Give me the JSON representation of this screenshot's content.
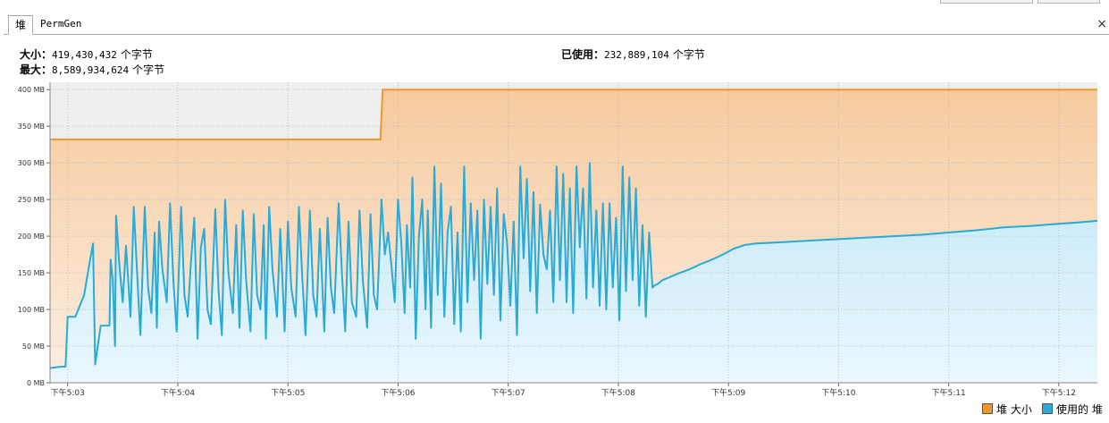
{
  "tabs": [
    {
      "label": "堆",
      "active": true
    },
    {
      "label": "PermGen",
      "active": false
    }
  ],
  "close_glyph": "×",
  "stats": {
    "size_label": "大小：",
    "size_value": "419,430,432",
    "max_label": "最大：",
    "max_value": "8,589,934,624",
    "used_label": "已使用：",
    "used_value": "232,889,104",
    "unit": "个字节"
  },
  "colors": {
    "heap_size": "#f0962d",
    "used_heap": "#2aaad6",
    "size_fill": "#f6ca9e",
    "used_fill": "#c3e8f8",
    "grid": "#c0c0c0",
    "plot_bg": "#efefef"
  },
  "chart_data": {
    "type": "area",
    "x_unit": "minutes after 17:03",
    "ylim": [
      0,
      410
    ],
    "y_unit": "MB",
    "y_ticks": [
      0,
      50,
      100,
      150,
      200,
      250,
      300,
      350,
      400
    ],
    "y_tick_labels": [
      "0 MB",
      "50 MB",
      "100 MB",
      "150 MB",
      "200 MB",
      "250 MB",
      "300 MB",
      "350 MB",
      "400 MB"
    ],
    "x_ticks": [
      0,
      1,
      2,
      3,
      4,
      5,
      6,
      7,
      8,
      9
    ],
    "x_tick_labels": [
      "下午5:03",
      "下午5:04",
      "下午5:05",
      "下午5:06",
      "下午5:07",
      "下午5:08",
      "下午5:09",
      "下午5:10",
      "下午5:11",
      "下午5:12"
    ],
    "xlim": [
      -0.16,
      9.35
    ],
    "grid": true,
    "legend_position": "bottom-right",
    "series": [
      {
        "name": "堆 大小",
        "color": "#f0962d",
        "points": [
          [
            -0.16,
            332
          ],
          [
            2.84,
            332
          ],
          [
            2.86,
            400
          ],
          [
            9.35,
            400
          ]
        ]
      },
      {
        "name": "使用的 堆",
        "color": "#2aaad6",
        "points": [
          [
            -0.16,
            20
          ],
          [
            -0.06,
            22
          ],
          [
            -0.02,
            22
          ],
          [
            0.0,
            90
          ],
          [
            0.07,
            90
          ],
          [
            0.15,
            120
          ],
          [
            0.2,
            165
          ],
          [
            0.23,
            190
          ],
          [
            0.25,
            25
          ],
          [
            0.3,
            78
          ],
          [
            0.35,
            78
          ],
          [
            0.38,
            78
          ],
          [
            0.39,
            168
          ],
          [
            0.41,
            140
          ],
          [
            0.43,
            50
          ],
          [
            0.44,
            228
          ],
          [
            0.47,
            160
          ],
          [
            0.5,
            110
          ],
          [
            0.53,
            187
          ],
          [
            0.57,
            90
          ],
          [
            0.6,
            240
          ],
          [
            0.63,
            150
          ],
          [
            0.66,
            65
          ],
          [
            0.7,
            240
          ],
          [
            0.73,
            130
          ],
          [
            0.76,
            95
          ],
          [
            0.79,
            205
          ],
          [
            0.81,
            75
          ],
          [
            0.83,
            220
          ],
          [
            0.86,
            155
          ],
          [
            0.9,
            110
          ],
          [
            0.93,
            245
          ],
          [
            0.96,
            140
          ],
          [
            0.99,
            70
          ],
          [
            1.03,
            240
          ],
          [
            1.06,
            120
          ],
          [
            1.09,
            90
          ],
          [
            1.12,
            165
          ],
          [
            1.15,
            225
          ],
          [
            1.18,
            60
          ],
          [
            1.21,
            185
          ],
          [
            1.24,
            210
          ],
          [
            1.27,
            100
          ],
          [
            1.3,
            80
          ],
          [
            1.34,
            237
          ],
          [
            1.37,
            125
          ],
          [
            1.4,
            65
          ],
          [
            1.43,
            250
          ],
          [
            1.46,
            150
          ],
          [
            1.5,
            95
          ],
          [
            1.53,
            215
          ],
          [
            1.56,
            75
          ],
          [
            1.59,
            235
          ],
          [
            1.62,
            140
          ],
          [
            1.66,
            70
          ],
          [
            1.69,
            230
          ],
          [
            1.72,
            120
          ],
          [
            1.75,
            100
          ],
          [
            1.78,
            215
          ],
          [
            1.8,
            60
          ],
          [
            1.83,
            240
          ],
          [
            1.86,
            155
          ],
          [
            1.9,
            90
          ],
          [
            1.93,
            210
          ],
          [
            1.97,
            70
          ],
          [
            2.0,
            220
          ],
          [
            2.03,
            130
          ],
          [
            2.07,
            90
          ],
          [
            2.1,
            240
          ],
          [
            2.13,
            145
          ],
          [
            2.16,
            65
          ],
          [
            2.2,
            235
          ],
          [
            2.23,
            120
          ],
          [
            2.26,
            90
          ],
          [
            2.29,
            210
          ],
          [
            2.33,
            70
          ],
          [
            2.36,
            225
          ],
          [
            2.39,
            130
          ],
          [
            2.42,
            95
          ],
          [
            2.46,
            245
          ],
          [
            2.49,
            150
          ],
          [
            2.52,
            70
          ],
          [
            2.55,
            220
          ],
          [
            2.58,
            110
          ],
          [
            2.62,
            90
          ],
          [
            2.65,
            235
          ],
          [
            2.68,
            140
          ],
          [
            2.72,
            75
          ],
          [
            2.75,
            230
          ],
          [
            2.78,
            120
          ],
          [
            2.81,
            100
          ],
          [
            2.85,
            250
          ],
          [
            2.88,
            175
          ],
          [
            2.91,
            205
          ],
          [
            2.94,
            160
          ],
          [
            2.97,
            110
          ],
          [
            3.0,
            250
          ],
          [
            3.03,
            190
          ],
          [
            3.06,
            95
          ],
          [
            3.08,
            215
          ],
          [
            3.11,
            130
          ],
          [
            3.13,
            280
          ],
          [
            3.16,
            60
          ],
          [
            3.19,
            200
          ],
          [
            3.22,
            250
          ],
          [
            3.25,
            100
          ],
          [
            3.27,
            235
          ],
          [
            3.3,
            75
          ],
          [
            3.33,
            295
          ],
          [
            3.36,
            120
          ],
          [
            3.39,
            272
          ],
          [
            3.42,
            90
          ],
          [
            3.45,
            205
          ],
          [
            3.48,
            240
          ],
          [
            3.51,
            80
          ],
          [
            3.54,
            205
          ],
          [
            3.57,
            70
          ],
          [
            3.6,
            295
          ],
          [
            3.63,
            110
          ],
          [
            3.66,
            245
          ],
          [
            3.69,
            140
          ],
          [
            3.72,
            235
          ],
          [
            3.75,
            60
          ],
          [
            3.78,
            250
          ],
          [
            3.81,
            135
          ],
          [
            3.84,
            240
          ],
          [
            3.87,
            120
          ],
          [
            3.9,
            265
          ],
          [
            3.93,
            85
          ],
          [
            3.96,
            230
          ],
          [
            3.99,
            190
          ],
          [
            4.02,
            105
          ],
          [
            4.05,
            220
          ],
          [
            4.08,
            65
          ],
          [
            4.11,
            295
          ],
          [
            4.14,
            170
          ],
          [
            4.17,
            278
          ],
          [
            4.2,
            125
          ],
          [
            4.23,
            260
          ],
          [
            4.26,
            95
          ],
          [
            4.29,
            243
          ],
          [
            4.32,
            175
          ],
          [
            4.35,
            155
          ],
          [
            4.38,
            235
          ],
          [
            4.41,
            110
          ],
          [
            4.44,
            295
          ],
          [
            4.47,
            140
          ],
          [
            4.5,
            285
          ],
          [
            4.53,
            110
          ],
          [
            4.56,
            265
          ],
          [
            4.59,
            95
          ],
          [
            4.62,
            295
          ],
          [
            4.65,
            185
          ],
          [
            4.68,
            265
          ],
          [
            4.71,
            115
          ],
          [
            4.74,
            300
          ],
          [
            4.77,
            130
          ],
          [
            4.8,
            235
          ],
          [
            4.83,
            105
          ],
          [
            4.86,
            245
          ],
          [
            4.89,
            100
          ],
          [
            4.92,
            245
          ],
          [
            4.95,
            130
          ],
          [
            4.98,
            225
          ],
          [
            5.01,
            85
          ],
          [
            5.04,
            295
          ],
          [
            5.07,
            125
          ],
          [
            5.1,
            280
          ],
          [
            5.13,
            140
          ],
          [
            5.16,
            265
          ],
          [
            5.19,
            105
          ],
          [
            5.22,
            215
          ],
          [
            5.25,
            90
          ],
          [
            5.28,
            205
          ],
          [
            5.31,
            130
          ],
          [
            5.33,
            133
          ],
          [
            5.36,
            135
          ],
          [
            5.4,
            140
          ],
          [
            5.48,
            145
          ],
          [
            5.56,
            150
          ],
          [
            5.65,
            155
          ],
          [
            5.75,
            162
          ],
          [
            5.85,
            168
          ],
          [
            5.95,
            175
          ],
          [
            6.05,
            183
          ],
          [
            6.15,
            188
          ],
          [
            6.25,
            190
          ],
          [
            6.5,
            192
          ],
          [
            6.75,
            194
          ],
          [
            7.0,
            196
          ],
          [
            7.25,
            198
          ],
          [
            7.5,
            200
          ],
          [
            7.75,
            202
          ],
          [
            8.0,
            205
          ],
          [
            8.25,
            208
          ],
          [
            8.5,
            212
          ],
          [
            8.75,
            214
          ],
          [
            9.0,
            217
          ],
          [
            9.2,
            219
          ],
          [
            9.35,
            221
          ]
        ]
      }
    ]
  }
}
